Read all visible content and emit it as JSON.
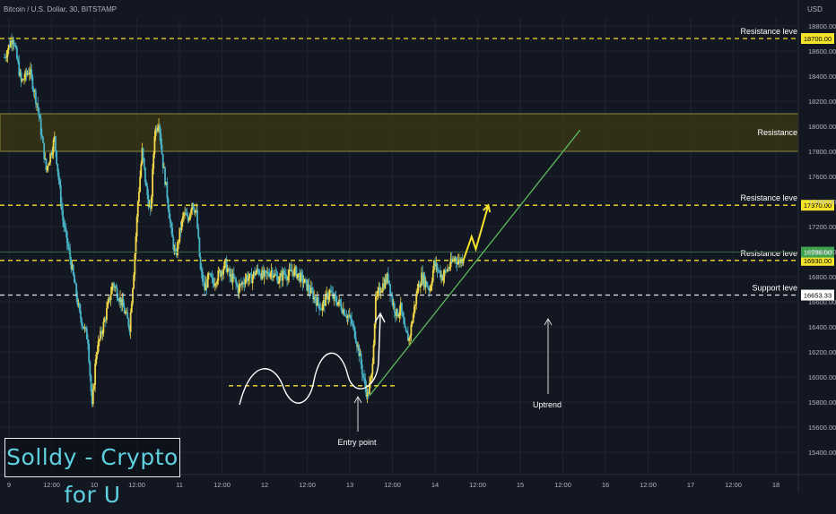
{
  "header": {
    "symbol_text": "Bitcoin / U.S. Dollar, 30, BITSTAMP"
  },
  "watermark": {
    "text": "Solldy - Crypto for U"
  },
  "colors": {
    "background": "#131722",
    "grid": "#1f2430",
    "bull_candle": "#f0d64a",
    "bear_candle": "#49b3c7",
    "resistance_line": "#f5e32a",
    "support_line": "#e6e6e6",
    "zone_fill": "#3c3a14",
    "zone_border": "#8c8a3a",
    "trendline": "#5dbb5d",
    "projection": "#f5e32a",
    "axis_text": "#b2b5be"
  },
  "chart_data": {
    "type": "candlestick",
    "price_unit": "USD",
    "price_range": [
      15300,
      18900
    ],
    "y_ticks": [
      15400,
      15600,
      15800,
      16000,
      16200,
      16400,
      16600,
      16800,
      17000,
      17200,
      17400,
      17600,
      17800,
      18000,
      18200,
      18400,
      18600,
      18800
    ],
    "x_ticks": [
      "9",
      "12:00",
      "10",
      "12:00",
      "11",
      "12:00",
      "12",
      "12:00",
      "13",
      "12:00",
      "14",
      "12:00",
      "15",
      "12:00",
      "16",
      "12:00",
      "17",
      "12:00",
      "18"
    ],
    "close_path": [
      [
        0,
        18550
      ],
      [
        2,
        18720
      ],
      [
        4,
        18350
      ],
      [
        6,
        18450
      ],
      [
        8,
        18150
      ],
      [
        10,
        17650
      ],
      [
        12,
        17900
      ],
      [
        14,
        17250
      ],
      [
        16,
        16900
      ],
      [
        18,
        16500
      ],
      [
        20,
        16300
      ],
      [
        21,
        15750
      ],
      [
        22,
        16200
      ],
      [
        24,
        16450
      ],
      [
        26,
        16750
      ],
      [
        28,
        16600
      ],
      [
        30,
        16400
      ],
      [
        31,
        16850
      ],
      [
        32,
        17400
      ],
      [
        33,
        17800
      ],
      [
        34,
        17500
      ],
      [
        35,
        17300
      ],
      [
        36,
        17950
      ],
      [
        37,
        18050
      ],
      [
        38,
        17700
      ],
      [
        39,
        17450
      ],
      [
        40,
        17150
      ],
      [
        41,
        16950
      ],
      [
        42,
        17150
      ],
      [
        43,
        17300
      ],
      [
        44,
        17250
      ],
      [
        45,
        17400
      ],
      [
        46,
        17300
      ],
      [
        47,
        16850
      ],
      [
        48,
        16700
      ],
      [
        49,
        16800
      ],
      [
        50,
        16750
      ],
      [
        51,
        16800
      ],
      [
        52,
        16850
      ],
      [
        53,
        16900
      ],
      [
        54,
        16800
      ],
      [
        55,
        16780
      ],
      [
        56,
        16700
      ],
      [
        57,
        16750
      ],
      [
        58,
        16800
      ],
      [
        59,
        16780
      ],
      [
        60,
        16830
      ],
      [
        61,
        16850
      ],
      [
        62,
        16800
      ],
      [
        63,
        16820
      ],
      [
        64,
        16850
      ],
      [
        65,
        16800
      ],
      [
        66,
        16780
      ],
      [
        67,
        16830
      ],
      [
        68,
        16810
      ],
      [
        69,
        16850
      ],
      [
        70,
        16830
      ],
      [
        71,
        16790
      ],
      [
        72,
        16750
      ],
      [
        73,
        16700
      ],
      [
        74,
        16650
      ],
      [
        75,
        16600
      ],
      [
        76,
        16550
      ],
      [
        77,
        16620
      ],
      [
        78,
        16680
      ],
      [
        79,
        16620
      ],
      [
        80,
        16600
      ],
      [
        81,
        16550
      ],
      [
        82,
        16500
      ],
      [
        83,
        16450
      ],
      [
        84,
        16350
      ],
      [
        85,
        16200
      ],
      [
        86,
        16000
      ],
      [
        87,
        15850
      ],
      [
        88,
        16000
      ],
      [
        89,
        16600
      ],
      [
        90,
        16700
      ],
      [
        91,
        16750
      ],
      [
        92,
        16800
      ],
      [
        93,
        16600
      ],
      [
        94,
        16500
      ],
      [
        95,
        16550
      ],
      [
        96,
        16350
      ],
      [
        97,
        16300
      ],
      [
        98,
        16500
      ],
      [
        99,
        16700
      ],
      [
        100,
        16800
      ],
      [
        101,
        16750
      ],
      [
        102,
        16700
      ],
      [
        103,
        16900
      ],
      [
        104,
        16850
      ],
      [
        105,
        16800
      ],
      [
        106,
        16850
      ],
      [
        107,
        16900
      ],
      [
        108,
        16950
      ],
      [
        109,
        16920
      ],
      [
        110,
        16950
      ]
    ],
    "levels": [
      {
        "label": "Resistance level",
        "price": 18700,
        "price_label": "18700.00",
        "style": "dashed",
        "color": "#f5e32a"
      },
      {
        "label": "Resistance level",
        "price": 17370,
        "price_label": "17370.00",
        "style": "dashed",
        "color": "#f5e32a"
      },
      {
        "label": "Resistance level",
        "price": 16930,
        "price_label": "16930.00",
        "style": "dashed",
        "color": "#f5e32a"
      },
      {
        "label": "Support level",
        "price": 16653.33,
        "price_label": "16653.33",
        "style": "dashed",
        "color": "#e6e6e6"
      }
    ],
    "current_price_label": "16996.00",
    "current_price": 16996,
    "resistance_zone": {
      "label": "Resistance",
      "from_price": 17800,
      "to_price": 18100
    },
    "trendline": {
      "label": "Uptrend",
      "from": [
        87.5,
        15850
      ],
      "to": [
        138,
        17970
      ]
    },
    "projection": [
      [
        110,
        16930
      ],
      [
        112,
        17120
      ],
      [
        113,
        17020
      ],
      [
        116,
        17370
      ]
    ],
    "entry_pattern_line": {
      "label": "Entry point",
      "x_from": 43,
      "x_to": 75,
      "price": 15930
    }
  }
}
